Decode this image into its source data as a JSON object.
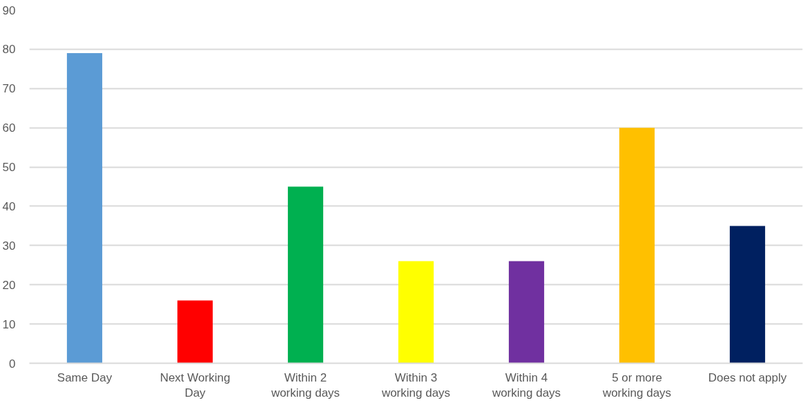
{
  "chart_data": {
    "type": "bar",
    "categories": [
      "Same Day",
      "Next Working Day",
      "Within 2 working days",
      "Within 3 working days",
      "Within 4 working days",
      "5 or more working days",
      "Does not apply"
    ],
    "values": [
      79,
      16,
      45,
      26,
      26,
      60,
      35
    ],
    "colors": [
      "#5b9bd5",
      "#ff0000",
      "#00b050",
      "#ffff00",
      "#7030a0",
      "#ffc000",
      "#002060"
    ],
    "ylim": [
      0,
      90
    ],
    "yticks": [
      0,
      10,
      20,
      30,
      40,
      50,
      60,
      70,
      80,
      90
    ],
    "grid": "y"
  }
}
